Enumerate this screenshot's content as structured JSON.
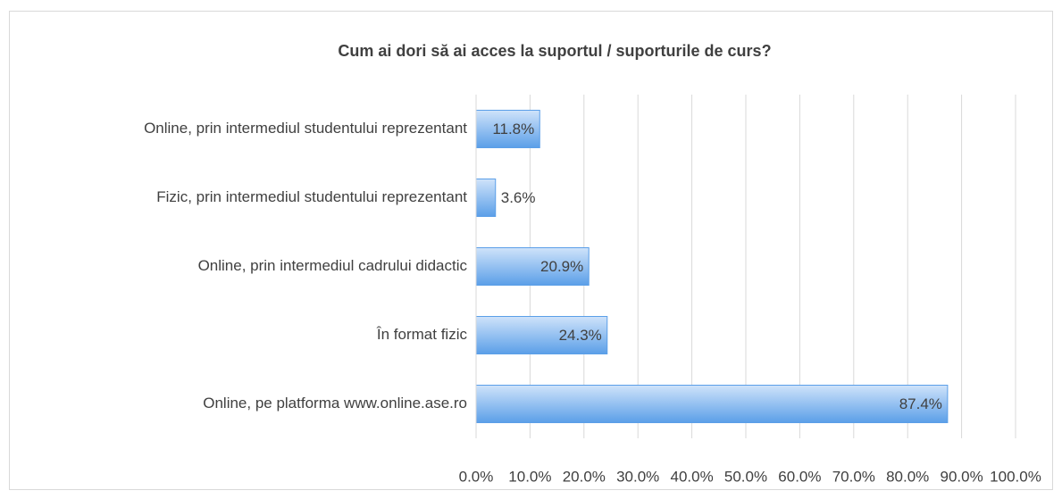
{
  "chart_data": {
    "type": "bar",
    "orientation": "horizontal",
    "title": "Cum ai dori să ai acces la suportul / suporturile de curs?",
    "categories": [
      "Online, prin intermediul studentului reprezentant",
      "Fizic, prin intermediul studentului reprezentant",
      "Online, prin intermediul cadrului didactic",
      "În format fizic",
      "Online, pe platforma www.online.ase.ro"
    ],
    "values": [
      11.8,
      3.6,
      20.9,
      24.3,
      87.4
    ],
    "value_labels": [
      "11.8%",
      "3.6%",
      "20.9%",
      "24.3%",
      "87.4%"
    ],
    "color": "#5b9fe8",
    "xlim": [
      0,
      100
    ],
    "xticks": [
      {
        "value": 0,
        "label": "0.0%"
      },
      {
        "value": 10,
        "label": "10.0%"
      },
      {
        "value": 20,
        "label": "20.0%"
      },
      {
        "value": 30,
        "label": "30.0%"
      },
      {
        "value": 40,
        "label": "40.0%"
      },
      {
        "value": 50,
        "label": "50.0%"
      },
      {
        "value": 60,
        "label": "60.0%"
      },
      {
        "value": 70,
        "label": "70.0%"
      },
      {
        "value": 80,
        "label": "80.0%"
      },
      {
        "value": 90,
        "label": "90.0%"
      },
      {
        "value": 100,
        "label": "100.0%"
      }
    ],
    "grid": true
  }
}
